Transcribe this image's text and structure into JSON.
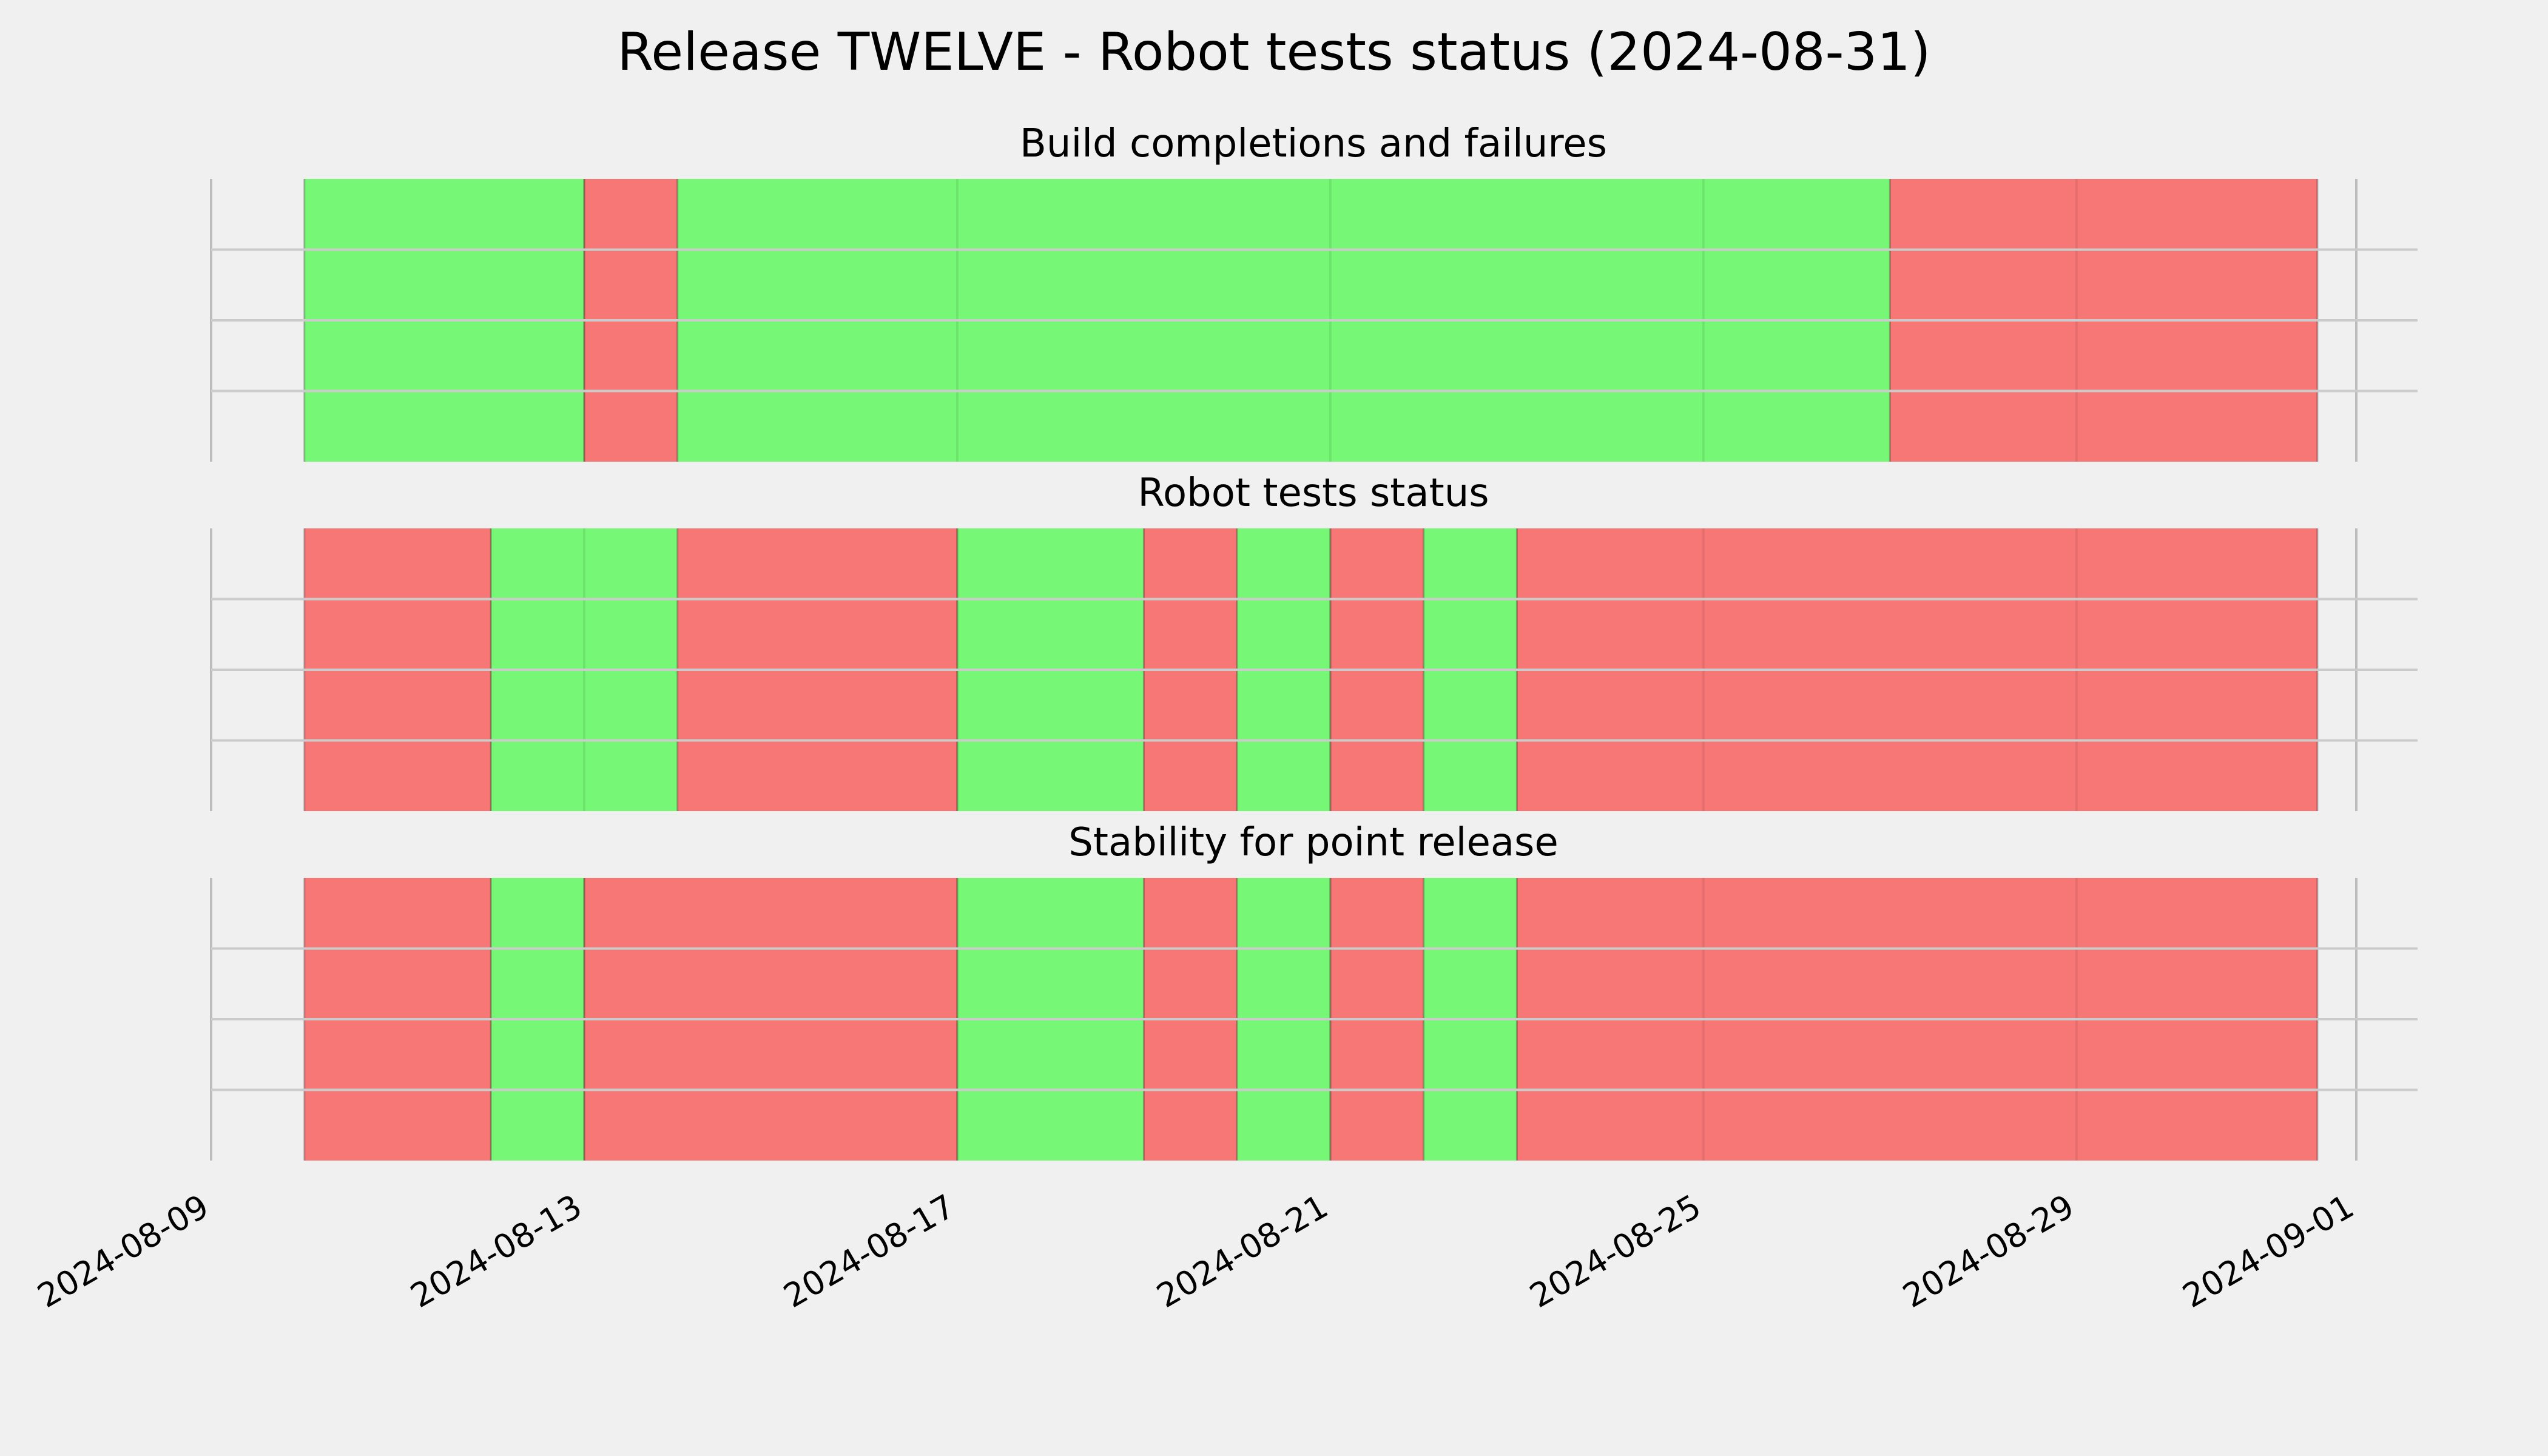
{
  "chart_data": {
    "type": "timeline",
    "title": "Release TWELVE - Robot tests status (2024-08-31)",
    "x_axis": {
      "range": [
        "2024-08-09",
        "2024-09-01"
      ],
      "tick_labels": [
        "2024-08-09",
        "2024-08-13",
        "2024-08-17",
        "2024-08-21",
        "2024-08-25",
        "2024-08-29",
        "2024-09-01"
      ],
      "tick_dates": [
        "2024-08-09",
        "2024-08-13",
        "2024-08-17",
        "2024-08-21",
        "2024-08-25",
        "2024-08-29",
        "2024-09-01"
      ],
      "label_rotation_deg": -30
    },
    "grid": true,
    "colors": {
      "pass": "#76f776",
      "fail": "#f77676",
      "background": "#f0f0f0",
      "grid": "#cbcbcb"
    },
    "panels": [
      {
        "title": "Build completions and failures",
        "segments": [
          {
            "start": "2024-08-10",
            "end": "2024-08-13",
            "status": "pass"
          },
          {
            "start": "2024-08-13",
            "end": "2024-08-14",
            "status": "fail"
          },
          {
            "start": "2024-08-14",
            "end": "2024-08-27",
            "status": "pass"
          },
          {
            "start": "2024-08-27",
            "end": "2024-08-31T14:00",
            "status": "fail"
          }
        ]
      },
      {
        "title": "Robot tests status",
        "segments": [
          {
            "start": "2024-08-10",
            "end": "2024-08-12",
            "status": "fail"
          },
          {
            "start": "2024-08-12",
            "end": "2024-08-14",
            "status": "pass"
          },
          {
            "start": "2024-08-14",
            "end": "2024-08-17",
            "status": "fail"
          },
          {
            "start": "2024-08-17",
            "end": "2024-08-19",
            "status": "pass"
          },
          {
            "start": "2024-08-19",
            "end": "2024-08-20",
            "status": "fail"
          },
          {
            "start": "2024-08-20",
            "end": "2024-08-21",
            "status": "pass"
          },
          {
            "start": "2024-08-21",
            "end": "2024-08-22",
            "status": "fail"
          },
          {
            "start": "2024-08-22",
            "end": "2024-08-23",
            "status": "pass"
          },
          {
            "start": "2024-08-23",
            "end": "2024-08-31T14:00",
            "status": "fail"
          }
        ]
      },
      {
        "title": "Stability for point release",
        "segments": [
          {
            "start": "2024-08-10",
            "end": "2024-08-12",
            "status": "fail"
          },
          {
            "start": "2024-08-12",
            "end": "2024-08-13",
            "status": "pass"
          },
          {
            "start": "2024-08-13",
            "end": "2024-08-17",
            "status": "fail"
          },
          {
            "start": "2024-08-17",
            "end": "2024-08-19",
            "status": "pass"
          },
          {
            "start": "2024-08-19",
            "end": "2024-08-20",
            "status": "fail"
          },
          {
            "start": "2024-08-20",
            "end": "2024-08-21",
            "status": "pass"
          },
          {
            "start": "2024-08-21",
            "end": "2024-08-22",
            "status": "fail"
          },
          {
            "start": "2024-08-22",
            "end": "2024-08-23",
            "status": "pass"
          },
          {
            "start": "2024-08-23",
            "end": "2024-08-31T14:00",
            "status": "fail"
          }
        ]
      }
    ]
  }
}
